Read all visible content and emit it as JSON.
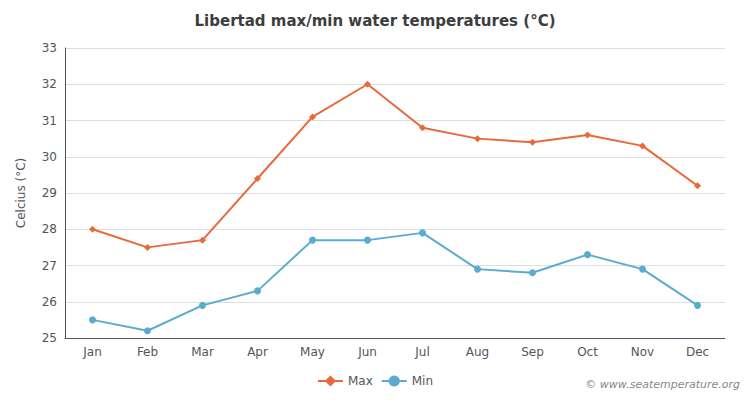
{
  "chart_data": {
    "type": "line",
    "title": "Libertad max/min water temperatures (°C)",
    "ylabel": "Celcius (°C)",
    "categories": [
      "Jan",
      "Feb",
      "Mar",
      "Apr",
      "May",
      "Jun",
      "Jul",
      "Aug",
      "Sep",
      "Oct",
      "Nov",
      "Dec"
    ],
    "series": [
      {
        "name": "Max",
        "color": "#e8693a",
        "marker": "diamond",
        "values": [
          28.0,
          27.5,
          27.7,
          29.4,
          31.1,
          32.0,
          30.8,
          30.5,
          30.4,
          30.6,
          30.3,
          29.2
        ]
      },
      {
        "name": "Min",
        "color": "#5aacce",
        "marker": "circle",
        "values": [
          25.5,
          25.2,
          25.9,
          26.3,
          27.7,
          27.7,
          27.9,
          26.9,
          26.8,
          27.3,
          26.9,
          25.9
        ]
      }
    ],
    "ylim": [
      25,
      33
    ],
    "yticks": [
      25,
      26,
      27,
      28,
      29,
      30,
      31,
      32,
      33
    ],
    "grid": true,
    "legend": "bottom",
    "annotations": [
      "© www.seatemperature.org"
    ]
  }
}
